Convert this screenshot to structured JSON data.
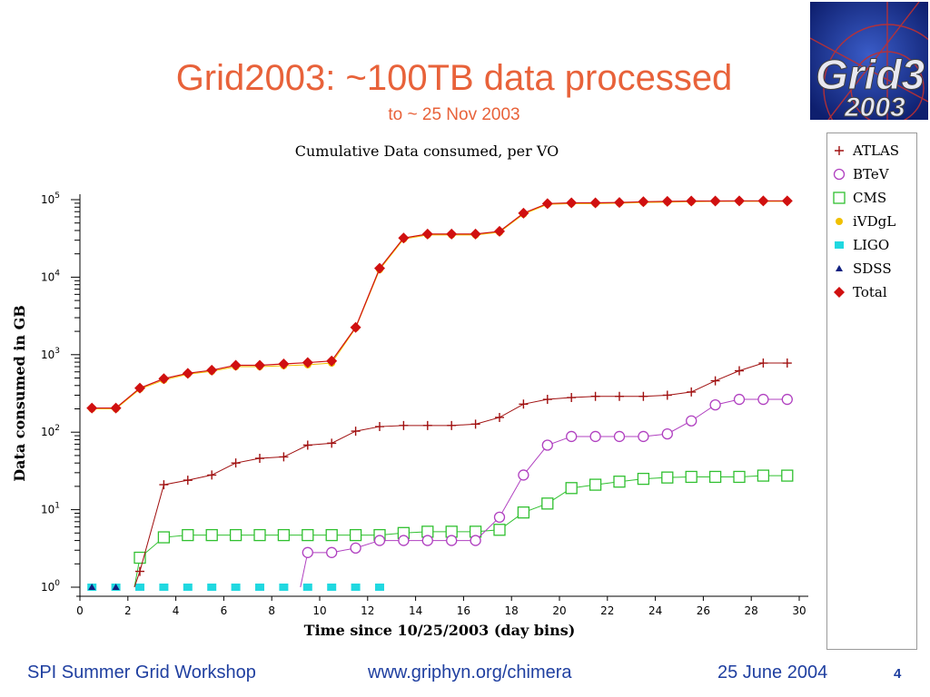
{
  "slide": {
    "title": "Grid2003: ~100TB data processed",
    "subtitle": "to ~ 25 Nov 2003",
    "logo_text_line1": "Grid3",
    "logo_text_line2": "2003",
    "footer_left": "SPI Summer Grid Workshop",
    "footer_center": "www.griphyn.org/chimera",
    "footer_right": "25 June 2004",
    "page_number": "4"
  },
  "chart_data": {
    "type": "line",
    "title": "Cumulative Data consumed, per VO",
    "xlabel": "Time since 10/25/2003 (day bins)",
    "ylabel": "Data consumed in GB",
    "xlim": [
      0,
      30
    ],
    "ylim": [
      1,
      100000
    ],
    "yscale": "log",
    "x_ticks": [
      0,
      2,
      4,
      6,
      8,
      10,
      12,
      14,
      16,
      18,
      20,
      22,
      24,
      26,
      28,
      30
    ],
    "y_tick_labels": [
      {
        "base": "10",
        "exp": "0",
        "value": 1
      },
      {
        "base": "10",
        "exp": "1",
        "value": 10
      },
      {
        "base": "10",
        "exp": "2",
        "value": 100
      },
      {
        "base": "10",
        "exp": "3",
        "value": 1000
      },
      {
        "base": "10",
        "exp": "4",
        "value": 10000
      },
      {
        "base": "10",
        "exp": "5",
        "value": 100000
      }
    ],
    "legend_position": "right",
    "series": [
      {
        "name": "ATLAS",
        "color": "#a01010",
        "marker": "plus",
        "x": [
          2.5,
          3.5,
          4.5,
          5.5,
          6.5,
          7.5,
          8.5,
          9.5,
          10.5,
          11.5,
          12.5,
          13.5,
          14.5,
          15.5,
          16.5,
          17.5,
          18.5,
          19.5,
          20.5,
          21.5,
          22.5,
          23.5,
          24.5,
          25.5,
          26.5,
          27.5,
          28.5,
          29.5
        ],
        "y": [
          1.6,
          21,
          24,
          28,
          40,
          46,
          48,
          68,
          72,
          103,
          118,
          122,
          122,
          122,
          127,
          155,
          230,
          265,
          280,
          290,
          290,
          290,
          300,
          330,
          460,
          620,
          780,
          780
        ]
      },
      {
        "name": "BTeV",
        "color": "#b040c0",
        "marker": "circle",
        "x": [
          9.5,
          10.5,
          11.5,
          12.5,
          13.5,
          14.5,
          15.5,
          16.5,
          17.5,
          18.5,
          19.5,
          20.5,
          21.5,
          22.5,
          23.5,
          24.5,
          25.5,
          26.5,
          27.5,
          28.5,
          29.5
        ],
        "y": [
          2.8,
          2.8,
          3.2,
          4.0,
          4.0,
          4.0,
          4.0,
          4.0,
          8.0,
          28,
          68,
          88,
          88,
          88,
          88,
          95,
          140,
          225,
          265,
          265,
          265
        ]
      },
      {
        "name": "CMS",
        "color": "#30c030",
        "marker": "square",
        "x": [
          2.5,
          3.5,
          4.5,
          5.5,
          6.5,
          7.5,
          8.5,
          9.5,
          10.5,
          11.5,
          12.5,
          13.5,
          14.5,
          15.5,
          16.5,
          17.5,
          18.5,
          19.5,
          20.5,
          21.5,
          22.5,
          23.5,
          24.5,
          25.5,
          26.5,
          27.5,
          28.5,
          29.5
        ],
        "y": [
          2.4,
          4.4,
          4.7,
          4.7,
          4.7,
          4.7,
          4.7,
          4.7,
          4.7,
          4.7,
          4.7,
          5.0,
          5.2,
          5.2,
          5.2,
          5.5,
          9.2,
          12,
          19,
          21,
          23,
          25,
          26,
          26.5,
          26.5,
          26.5,
          27.5,
          27.5
        ]
      },
      {
        "name": "iVDgL",
        "color": "#f0c000",
        "marker": "dot",
        "x": [
          0.5,
          1.5,
          2.5,
          3.5,
          4.5,
          5.5,
          6.5,
          7.5,
          8.5,
          9.5,
          10.5,
          11.5,
          12.5,
          13.5,
          14.5,
          15.5,
          16.5,
          17.5,
          18.5,
          19.5,
          20.5,
          21.5,
          22.5,
          23.5,
          24.5,
          25.5,
          26.5,
          27.5,
          28.5,
          29.5
        ],
        "y": [
          200,
          200,
          360,
          470,
          560,
          610,
          700,
          700,
          720,
          740,
          780,
          2200,
          12500,
          31000,
          35000,
          35000,
          35000,
          38000,
          65000,
          87000,
          89000,
          89000,
          90000,
          92000,
          93000,
          94000,
          95000,
          95000,
          95000,
          95000
        ]
      },
      {
        "name": "LIGO",
        "color": "#20d8e0",
        "marker": "filled-square",
        "x": [
          0.5,
          1.5,
          2.5,
          3.5,
          4.5,
          5.5,
          6.5,
          7.5,
          8.5,
          9.5,
          10.5,
          11.5,
          12.5
        ],
        "y": [
          1,
          1,
          1,
          1,
          1,
          1,
          1,
          1,
          1,
          1,
          1,
          1,
          1
        ]
      },
      {
        "name": "SDSS",
        "color": "#102080",
        "marker": "triangle",
        "x": [
          0.5,
          1.5
        ],
        "y": [
          1,
          1
        ]
      },
      {
        "name": "Total",
        "color": "#d01010",
        "marker": "diamond",
        "x": [
          0.5,
          1.5,
          2.5,
          3.5,
          4.5,
          5.5,
          6.5,
          7.5,
          8.5,
          9.5,
          10.5,
          11.5,
          12.5,
          13.5,
          14.5,
          15.5,
          16.5,
          17.5,
          18.5,
          19.5,
          20.5,
          21.5,
          22.5,
          23.5,
          24.5,
          25.5,
          26.5,
          27.5,
          28.5,
          29.5
        ],
        "y": [
          205,
          205,
          370,
          490,
          575,
          630,
          730,
          730,
          760,
          790,
          830,
          2250,
          13000,
          32000,
          36000,
          36000,
          36000,
          39000,
          67000,
          89000,
          91000,
          91000,
          92000,
          94000,
          95000,
          96000,
          96000,
          96500,
          96500,
          96500
        ]
      }
    ]
  }
}
